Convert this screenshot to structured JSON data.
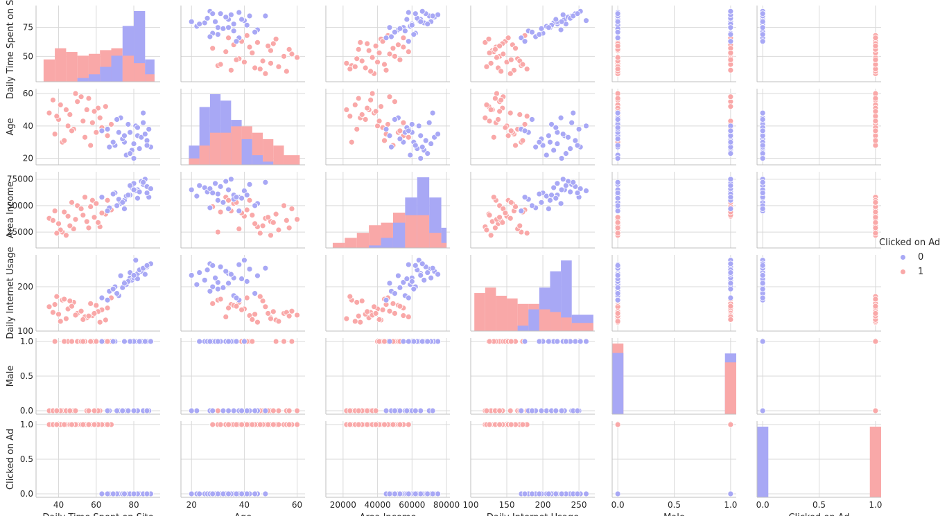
{
  "chart_data": {
    "type": "scatter",
    "subtype": "pairplot",
    "variables": [
      "Daily Time Spent on Site",
      "Age",
      "Area Income",
      "Daily Internet Usage",
      "Male",
      "Clicked on Ad"
    ],
    "hue": "Clicked on Ad",
    "legend": {
      "title": "Clicked on Ad",
      "placement": "right",
      "entries": [
        {
          "label": "0",
          "color": "#a8a8f5"
        },
        {
          "label": "1",
          "color": "#f9a8a8"
        }
      ]
    },
    "axes": [
      {
        "label": "Daily Time Spent on Site",
        "range": [
          28,
          94
        ],
        "ticks": [
          {
            "v": 40,
            "t": "40"
          },
          {
            "v": 60,
            "t": "60"
          },
          {
            "v": 80,
            "t": "80"
          }
        ],
        "y_ticks": [
          {
            "v": 50,
            "t": "50"
          },
          {
            "v": 75,
            "t": "75"
          }
        ]
      },
      {
        "label": "Age",
        "range": [
          16,
          63
        ],
        "ticks": [
          {
            "v": 20,
            "t": "20"
          },
          {
            "v": 40,
            "t": "40"
          },
          {
            "v": 60,
            "t": "60"
          }
        ],
        "y_ticks": [
          {
            "v": 20,
            "t": "20"
          },
          {
            "v": 40,
            "t": "40"
          },
          {
            "v": 60,
            "t": "60"
          }
        ]
      },
      {
        "label": "Area Income",
        "range": [
          10000,
          82000
        ],
        "ticks": [
          {
            "v": 20000,
            "t": "20000"
          },
          {
            "v": 40000,
            "t": "40000"
          },
          {
            "v": 60000,
            "t": "60000"
          },
          {
            "v": 80000,
            "t": "80000"
          }
        ],
        "y_ticks": [
          {
            "v": 25000,
            "t": "25000"
          },
          {
            "v": 50000,
            "t": "50000"
          },
          {
            "v": 75000,
            "t": "75000"
          }
        ]
      },
      {
        "label": "Daily Internet Usage",
        "range": [
          100,
          272
        ],
        "ticks": [
          {
            "v": 100,
            "t": "100"
          },
          {
            "v": 150,
            "t": "150"
          },
          {
            "v": 200,
            "t": "200"
          },
          {
            "v": 250,
            "t": "250"
          }
        ],
        "y_ticks": [
          {
            "v": 100,
            "t": "100"
          },
          {
            "v": 200,
            "t": "200"
          }
        ]
      },
      {
        "label": "Male",
        "range": [
          -0.05,
          1.05
        ],
        "ticks": [
          {
            "v": 0,
            "t": "0.0"
          },
          {
            "v": 0.5,
            "t": "0.5"
          },
          {
            "v": 1,
            "t": "1.0"
          }
        ],
        "y_ticks": [
          {
            "v": 0,
            "t": "0.0"
          },
          {
            "v": 0.5,
            "t": "0.5"
          },
          {
            "v": 1,
            "t": "1.0"
          }
        ]
      },
      {
        "label": "Clicked on Ad",
        "range": [
          -0.05,
          1.05
        ],
        "ticks": [
          {
            "v": 0,
            "t": "0.0"
          },
          {
            "v": 0.5,
            "t": "0.5"
          },
          {
            "v": 1,
            "t": "1.0"
          }
        ],
        "y_ticks": [
          {
            "v": 0,
            "t": "0.0"
          },
          {
            "v": 0.5,
            "t": "0.5"
          },
          {
            "v": 1,
            "t": "1.0"
          }
        ]
      }
    ],
    "points": {
      "0": [
        [
          78,
          36,
          60000,
          220,
          1,
          0
        ],
        [
          82,
          34,
          65000,
          230,
          0,
          0
        ],
        [
          75,
          30,
          55000,
          210,
          1,
          0
        ],
        [
          85,
          42,
          70000,
          240,
          0,
          0
        ],
        [
          70,
          28,
          62000,
          200,
          1,
          0
        ],
        [
          88,
          38,
          58000,
          250,
          0,
          0
        ],
        [
          79,
          25,
          67000,
          215,
          1,
          0
        ],
        [
          73,
          45,
          52000,
          225,
          0,
          0
        ],
        [
          84,
          33,
          73000,
          235,
          1,
          0
        ],
        [
          67,
          27,
          48000,
          190,
          0,
          0
        ],
        [
          81,
          40,
          64000,
          260,
          1,
          0
        ],
        [
          76,
          22,
          59000,
          205,
          0,
          0
        ],
        [
          87,
          31,
          68000,
          245,
          1,
          0
        ],
        [
          72,
          36,
          56000,
          180,
          0,
          0
        ],
        [
          80,
          29,
          71000,
          220,
          1,
          0
        ],
        [
          66,
          38,
          45000,
          170,
          0,
          0
        ],
        [
          83,
          26,
          63000,
          238,
          1,
          0
        ],
        [
          77,
          41,
          60000,
          212,
          0,
          0
        ],
        [
          86,
          35,
          75000,
          228,
          1,
          0
        ],
        [
          74,
          32,
          53000,
          198,
          0,
          0
        ],
        [
          89,
          27,
          66000,
          252,
          1,
          0
        ],
        [
          71,
          44,
          50000,
          185,
          0,
          0
        ],
        [
          78,
          23,
          69000,
          232,
          1,
          0
        ],
        [
          82,
          39,
          57000,
          218,
          0,
          0
        ],
        [
          69,
          30,
          61000,
          195,
          1,
          0
        ],
        [
          85,
          48,
          72000,
          242,
          0,
          0
        ],
        [
          75,
          34,
          47000,
          208,
          1,
          0
        ],
        [
          80,
          20,
          65000,
          226,
          0,
          0
        ],
        [
          63,
          37,
          58000,
          175,
          1,
          0
        ],
        [
          87,
          28,
          62000,
          248,
          0,
          0
        ]
      ],
      "1": [
        [
          45,
          40,
          40000,
          150,
          1,
          1
        ],
        [
          55,
          50,
          35000,
          130,
          0,
          1
        ],
        [
          38,
          35,
          45000,
          160,
          1,
          1
        ],
        [
          62,
          45,
          30000,
          120,
          0,
          1
        ],
        [
          50,
          55,
          50000,
          140,
          1,
          1
        ],
        [
          42,
          30,
          25000,
          170,
          0,
          1
        ],
        [
          58,
          42,
          55000,
          135,
          1,
          1
        ],
        [
          35,
          48,
          38000,
          155,
          0,
          1
        ],
        [
          65,
          52,
          42000,
          125,
          1,
          1
        ],
        [
          48,
          38,
          28000,
          165,
          0,
          1
        ],
        [
          52,
          58,
          47000,
          145,
          1,
          1
        ],
        [
          40,
          44,
          33000,
          138,
          0,
          1
        ],
        [
          60,
          36,
          52000,
          158,
          1,
          1
        ],
        [
          44,
          50,
          22000,
          128,
          0,
          1
        ],
        [
          68,
          41,
          46000,
          175,
          1,
          1
        ],
        [
          37,
          56,
          36000,
          142,
          0,
          1
        ],
        [
          54,
          33,
          58000,
          132,
          1,
          1
        ],
        [
          46,
          47,
          31000,
          168,
          0,
          1
        ],
        [
          63,
          39,
          43000,
          148,
          1,
          1
        ],
        [
          41,
          53,
          27000,
          122,
          0,
          1
        ],
        [
          57,
          28,
          49000,
          162,
          1,
          1
        ],
        [
          49,
          60,
          37000,
          136,
          0,
          1
        ],
        [
          66,
          34,
          55000,
          152,
          1,
          1
        ],
        [
          39,
          46,
          24000,
          178,
          0,
          1
        ],
        [
          53,
          43,
          41000,
          126,
          1,
          1
        ],
        [
          61,
          51,
          34000,
          144,
          0,
          1
        ],
        [
          43,
          31,
          44000,
          172,
          1,
          1
        ],
        [
          56,
          57,
          29000,
          134,
          0,
          1
        ],
        [
          47,
          37,
          53000,
          156,
          1,
          1
        ],
        [
          59,
          49,
          39000,
          140,
          0,
          1
        ]
      ]
    },
    "histograms": [
      {
        "bins": [
          [
            32,
            38
          ],
          [
            38,
            44
          ],
          [
            44,
            50
          ],
          [
            50,
            56
          ],
          [
            56,
            62
          ],
          [
            62,
            68
          ],
          [
            68,
            74
          ],
          [
            74,
            80
          ],
          [
            80,
            86
          ],
          [
            86,
            91
          ]
        ],
        "counts_0": [
          0,
          0,
          0,
          2,
          4,
          8,
          14,
          30,
          38,
          12
        ],
        "counts_1": [
          12,
          18,
          16,
          14,
          15,
          17,
          18,
          14,
          10,
          4
        ]
      },
      {
        "bins": [
          [
            19,
            23
          ],
          [
            23,
            27
          ],
          [
            27,
            31
          ],
          [
            31,
            35
          ],
          [
            35,
            39
          ],
          [
            39,
            43
          ],
          [
            43,
            47
          ],
          [
            47,
            51
          ],
          [
            51,
            55
          ],
          [
            55,
            61
          ]
        ],
        "counts_0": [
          6,
          18,
          22,
          20,
          14,
          8,
          3,
          1,
          0,
          0
        ],
        "counts_1": [
          2,
          6,
          10,
          10,
          12,
          12,
          10,
          8,
          6,
          3
        ]
      },
      {
        "bins": [
          [
            14000,
            21000
          ],
          [
            21000,
            28000
          ],
          [
            28000,
            35000
          ],
          [
            35000,
            42000
          ],
          [
            42000,
            49000
          ],
          [
            49000,
            56000
          ],
          [
            56000,
            63000
          ],
          [
            63000,
            70000
          ],
          [
            70000,
            77000
          ],
          [
            77000,
            80000
          ]
        ],
        "counts_0": [
          0,
          0,
          0,
          1,
          4,
          10,
          20,
          28,
          20,
          8
        ],
        "counts_1": [
          2,
          4,
          6,
          9,
          10,
          14,
          13,
          13,
          6,
          2
        ]
      },
      {
        "bins": [
          [
            105,
            120
          ],
          [
            120,
            135
          ],
          [
            135,
            150
          ],
          [
            150,
            165
          ],
          [
            165,
            180
          ],
          [
            180,
            195
          ],
          [
            195,
            210
          ],
          [
            210,
            225
          ],
          [
            225,
            240
          ],
          [
            240,
            270
          ]
        ],
        "counts_0": [
          0,
          0,
          0,
          0,
          2,
          8,
          16,
          22,
          26,
          6
        ],
        "counts_1": [
          14,
          16,
          13,
          12,
          10,
          10,
          8,
          7,
          5,
          3
        ]
      },
      {
        "bins": [
          [
            -0.05,
            0.05
          ],
          [
            0.95,
            1.05
          ]
        ],
        "counts_0": [
          260,
          258
        ],
        "counts_1": [
          300,
          220
        ]
      },
      {
        "bins": [
          [
            -0.05,
            0.05
          ],
          [
            0.95,
            1.05
          ]
        ],
        "counts_0": [
          500,
          0
        ],
        "counts_1": [
          0,
          500
        ]
      }
    ]
  }
}
